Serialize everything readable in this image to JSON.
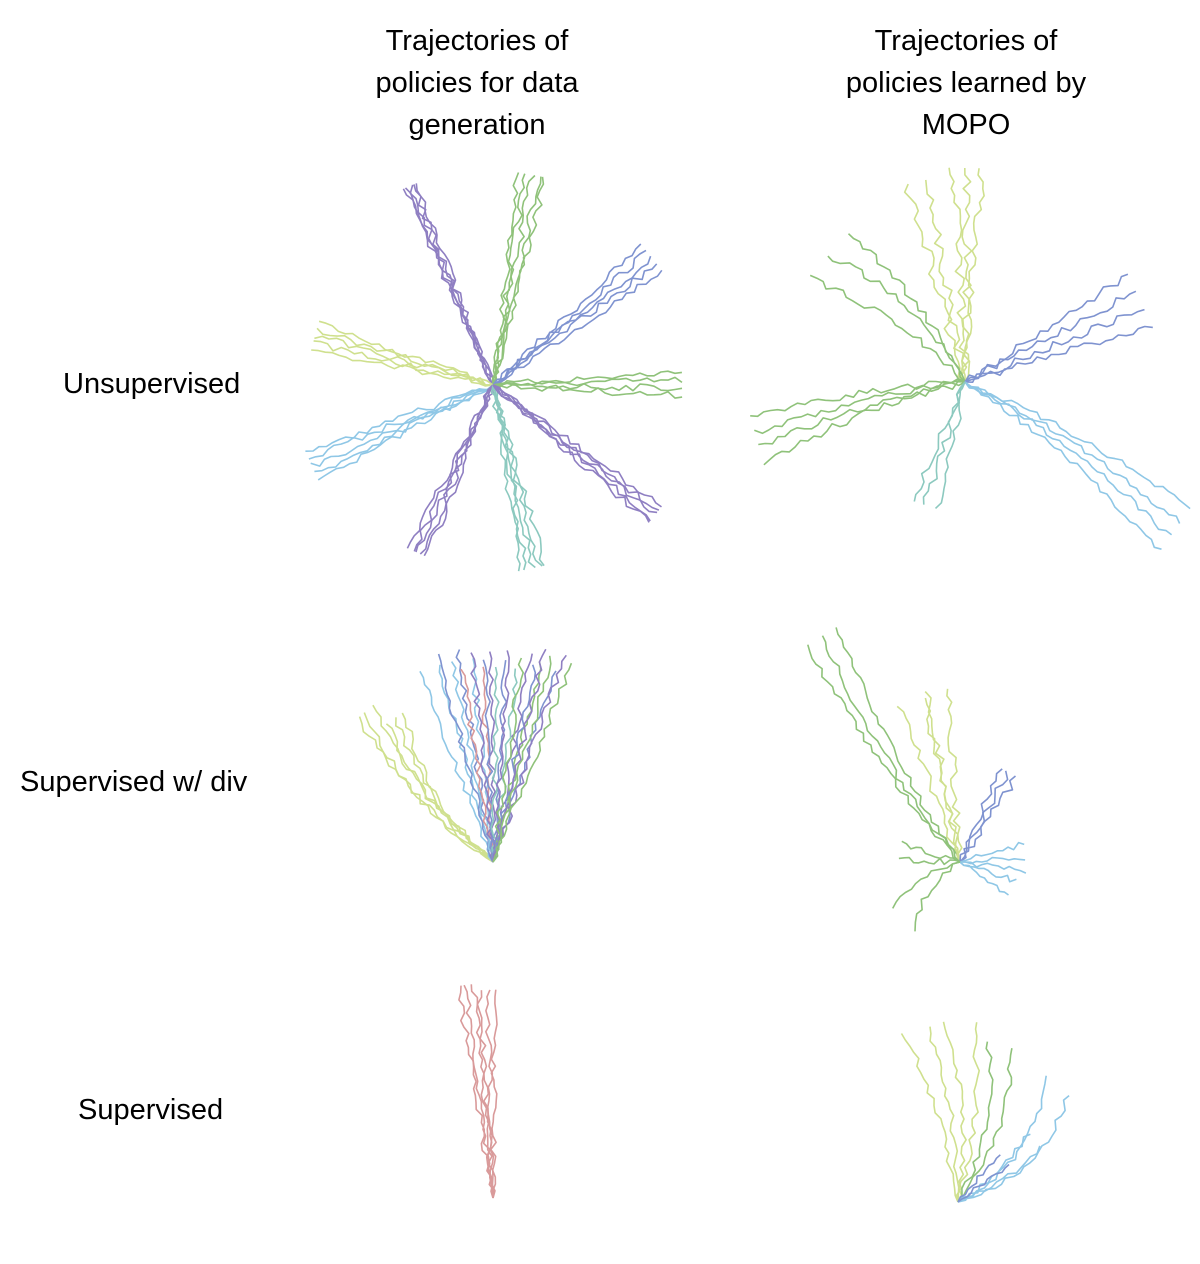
{
  "headers": {
    "left": "Trajectories of\npolicies for data\ngeneration",
    "right": "Trajectories of\npolicies learned by\nMOPO"
  },
  "rows": {
    "unsupervised": "Unsupervised",
    "supervised_div": "Supervised w/ div",
    "supervised": "Supervised"
  },
  "colors": {
    "lime": "#cfe08e",
    "green": "#8fc27a",
    "blue": "#7f93d0",
    "lightblue": "#8fc7e6",
    "purple": "#8f7fc2",
    "teal": "#8cc9bf",
    "red": "#d99a9a"
  }
}
